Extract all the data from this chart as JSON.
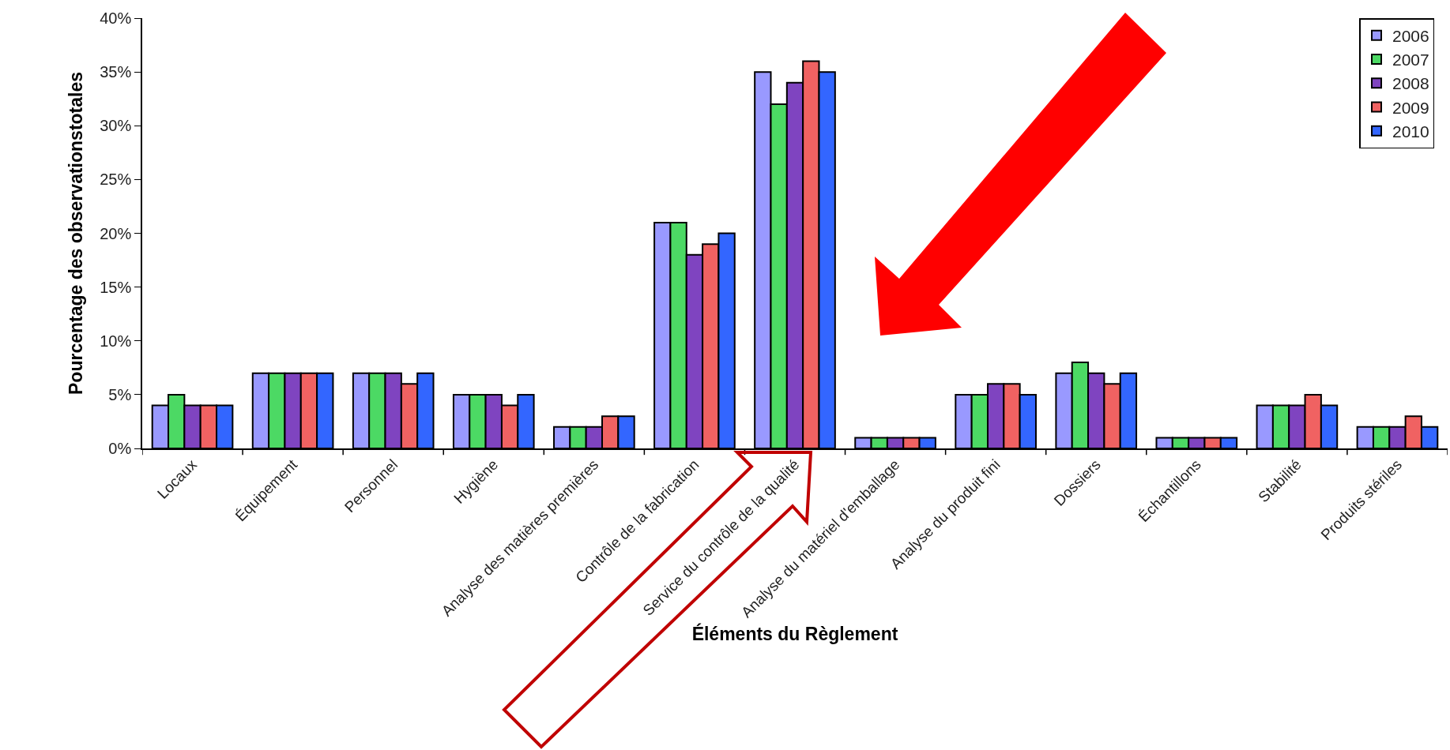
{
  "chart_data": {
    "type": "bar",
    "xlabel": "Éléments du Règlement",
    "ylabel": "Pourcentage des observationstotales",
    "categories": [
      "Locaux",
      "Équipement",
      "Personnel",
      "Hygiène",
      "Analyse des matières premières",
      "Contrôle de la fabrication",
      "Service du contrôle de la qualité",
      "Analyse du matériel d'emballage",
      "Analyse du produit fini",
      "Dossiers",
      "Échantillons",
      "Stabilité",
      "Produits stériles"
    ],
    "series": [
      {
        "name": "2006",
        "color": "#9999ff",
        "values": [
          4,
          7,
          7,
          5,
          2,
          21,
          35,
          1,
          5,
          7,
          1,
          4,
          2
        ]
      },
      {
        "name": "2007",
        "color": "#4cd964",
        "values": [
          5,
          7,
          7,
          5,
          2,
          21,
          32,
          1,
          5,
          8,
          1,
          4,
          2
        ]
      },
      {
        "name": "2008",
        "color": "#7f44c0",
        "values": [
          4,
          7,
          7,
          5,
          2,
          18,
          34,
          1,
          6,
          7,
          1,
          4,
          2
        ]
      },
      {
        "name": "2009",
        "color": "#f06262",
        "values": [
          4,
          7,
          6,
          4,
          3,
          19,
          36,
          1,
          6,
          6,
          1,
          5,
          3
        ]
      },
      {
        "name": "2010",
        "color": "#3366ff",
        "values": [
          4,
          7,
          7,
          5,
          3,
          20,
          35,
          1,
          5,
          7,
          1,
          4,
          2
        ]
      }
    ],
    "ylim": [
      0,
      40
    ],
    "yticks": [
      {
        "value": 0,
        "label": "0%"
      },
      {
        "value": 5,
        "label": "5%"
      },
      {
        "value": 10,
        "label": "10%"
      },
      {
        "value": 15,
        "label": "15%"
      },
      {
        "value": 20,
        "label": "20%"
      },
      {
        "value": 25,
        "label": "25%"
      },
      {
        "value": 30,
        "label": "30%"
      },
      {
        "value": 35,
        "label": "35%"
      },
      {
        "value": 40,
        "label": "40%"
      }
    ],
    "grid": false,
    "legend": "top right"
  }
}
